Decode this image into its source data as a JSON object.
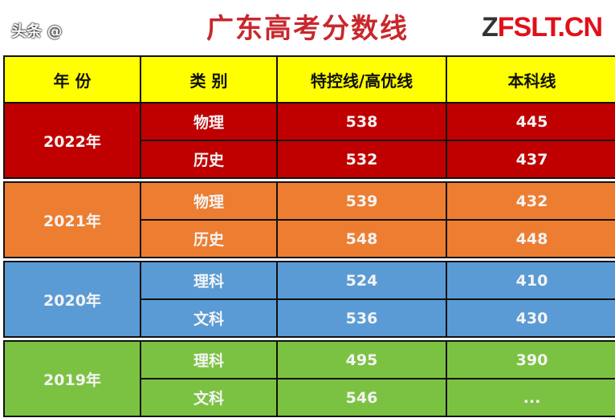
{
  "title": "广东高考分数线",
  "headers": [
    "年 份",
    "类 别",
    "特控线/高优线",
    "本科线"
  ],
  "colors": {
    "header": "#ffff00",
    "2022": "#c00000",
    "2021": "#ed7d31",
    "2020": "#5b9bd5",
    "2019": "#7cc242"
  },
  "groups": [
    {
      "year": "2022年",
      "color": "#c00000",
      "rows": [
        {
          "category": "物理",
          "special": "538",
          "undergrad": "445"
        },
        {
          "category": "历史",
          "special": "532",
          "undergrad": "437"
        }
      ]
    },
    {
      "year": "2021年",
      "color": "#ed7d31",
      "rows": [
        {
          "category": "物理",
          "special": "539",
          "undergrad": "432"
        },
        {
          "category": "历史",
          "special": "548",
          "undergrad": "448"
        }
      ]
    },
    {
      "year": "2020年",
      "color": "#5b9bd5",
      "rows": [
        {
          "category": "理科",
          "special": "524",
          "undergrad": "410"
        },
        {
          "category": "文科",
          "special": "536",
          "undergrad": "430"
        }
      ]
    },
    {
      "year": "2019年",
      "color": "#7cc242",
      "rows": [
        {
          "category": "理科",
          "special": "495",
          "undergrad": "390"
        },
        {
          "category": "文科",
          "special": "546",
          "undergrad": "..."
        }
      ]
    }
  ],
  "watermark": "头条 @",
  "logo": "FSLT.CN"
}
